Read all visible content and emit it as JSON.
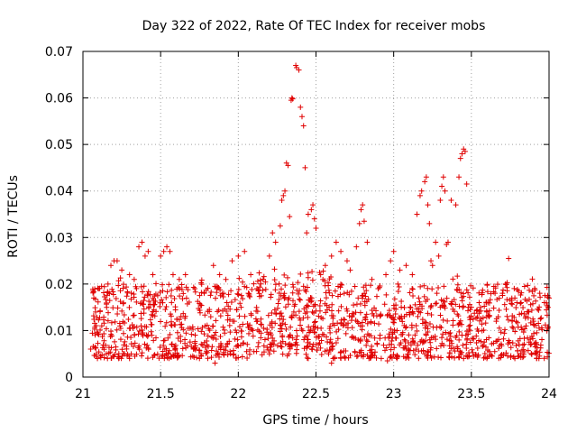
{
  "chart_data": {
    "type": "scatter",
    "title": "Day 322 of 2022, Rate Of TEC Index for receiver mobs",
    "xlabel": "GPS time / hours",
    "ylabel": "ROTI / TECUs",
    "xlim": [
      21,
      24
    ],
    "ylim": [
      0,
      0.07
    ],
    "grid": true,
    "marker": "+",
    "color": "#e00000",
    "x_ticks": [
      21,
      21.5,
      22,
      22.5,
      23,
      23.5,
      24
    ],
    "x_tick_labels": [
      "21",
      "21.5",
      "22",
      "22.5",
      "23",
      "23.5",
      "24"
    ],
    "y_ticks": [
      0,
      0.01,
      0.02,
      0.03,
      0.04,
      0.05,
      0.06,
      0.07
    ],
    "y_tick_labels": [
      "0",
      "0.01",
      "0.02",
      "0.03",
      "0.04",
      "0.05",
      "0.06",
      "0.07"
    ],
    "series": [
      {
        "name": "ROTI",
        "points": [
          [
            21.07,
            0.017
          ],
          [
            21.1,
            0.019
          ],
          [
            21.12,
            0.0195
          ],
          [
            21.18,
            0.024
          ],
          [
            21.2,
            0.025
          ],
          [
            21.22,
            0.025
          ],
          [
            21.25,
            0.023
          ],
          [
            21.3,
            0.022
          ],
          [
            21.33,
            0.021
          ],
          [
            21.36,
            0.028
          ],
          [
            21.38,
            0.029
          ],
          [
            21.4,
            0.026
          ],
          [
            21.42,
            0.027
          ],
          [
            21.45,
            0.022
          ],
          [
            21.5,
            0.026
          ],
          [
            21.52,
            0.027
          ],
          [
            21.54,
            0.028
          ],
          [
            21.56,
            0.027
          ],
          [
            21.58,
            0.022
          ],
          [
            21.62,
            0.021
          ],
          [
            21.66,
            0.022
          ],
          [
            21.72,
            0.019
          ],
          [
            21.78,
            0.018
          ],
          [
            21.84,
            0.024
          ],
          [
            21.88,
            0.022
          ],
          [
            21.92,
            0.021
          ],
          [
            21.96,
            0.025
          ],
          [
            22.0,
            0.026
          ],
          [
            22.04,
            0.027
          ],
          [
            22.08,
            0.022
          ],
          [
            22.12,
            0.019
          ],
          [
            22.16,
            0.021
          ],
          [
            22.2,
            0.026
          ],
          [
            22.22,
            0.031
          ],
          [
            22.24,
            0.029
          ],
          [
            22.27,
            0.0325
          ],
          [
            22.28,
            0.038
          ],
          [
            22.29,
            0.039
          ],
          [
            22.3,
            0.04
          ],
          [
            22.31,
            0.046
          ],
          [
            22.32,
            0.0455
          ],
          [
            22.33,
            0.0345
          ],
          [
            22.34,
            0.0595
          ],
          [
            22.345,
            0.06
          ],
          [
            22.35,
            0.0598
          ],
          [
            22.37,
            0.067
          ],
          [
            22.375,
            0.0665
          ],
          [
            22.39,
            0.066
          ],
          [
            22.4,
            0.058
          ],
          [
            22.41,
            0.056
          ],
          [
            22.42,
            0.054
          ],
          [
            22.43,
            0.045
          ],
          [
            22.44,
            0.031
          ],
          [
            22.45,
            0.035
          ],
          [
            22.47,
            0.036
          ],
          [
            22.48,
            0.037
          ],
          [
            22.49,
            0.034
          ],
          [
            22.5,
            0.032
          ],
          [
            22.53,
            0.022
          ],
          [
            22.56,
            0.024
          ],
          [
            22.6,
            0.026
          ],
          [
            22.63,
            0.029
          ],
          [
            22.66,
            0.027
          ],
          [
            22.7,
            0.025
          ],
          [
            22.72,
            0.023
          ],
          [
            22.76,
            0.028
          ],
          [
            22.78,
            0.033
          ],
          [
            22.79,
            0.036
          ],
          [
            22.8,
            0.037
          ],
          [
            22.81,
            0.0335
          ],
          [
            22.83,
            0.029
          ],
          [
            22.86,
            0.021
          ],
          [
            22.9,
            0.019
          ],
          [
            22.95,
            0.022
          ],
          [
            22.98,
            0.025
          ],
          [
            23.0,
            0.027
          ],
          [
            23.04,
            0.023
          ],
          [
            23.08,
            0.024
          ],
          [
            23.12,
            0.022
          ],
          [
            23.15,
            0.035
          ],
          [
            23.17,
            0.039
          ],
          [
            23.18,
            0.04
          ],
          [
            23.2,
            0.042
          ],
          [
            23.21,
            0.043
          ],
          [
            23.22,
            0.037
          ],
          [
            23.23,
            0.033
          ],
          [
            23.24,
            0.025
          ],
          [
            23.25,
            0.024
          ],
          [
            23.27,
            0.029
          ],
          [
            23.29,
            0.026
          ],
          [
            23.3,
            0.038
          ],
          [
            23.31,
            0.041
          ],
          [
            23.32,
            0.043
          ],
          [
            23.33,
            0.04
          ],
          [
            23.34,
            0.0285
          ],
          [
            23.35,
            0.029
          ],
          [
            23.37,
            0.038
          ],
          [
            23.4,
            0.037
          ],
          [
            23.42,
            0.043
          ],
          [
            23.43,
            0.047
          ],
          [
            23.44,
            0.048
          ],
          [
            23.45,
            0.049
          ],
          [
            23.46,
            0.0485
          ],
          [
            23.47,
            0.0415
          ],
          [
            23.5,
            0.015
          ],
          [
            23.55,
            0.016
          ],
          [
            23.6,
            0.014
          ],
          [
            23.66,
            0.012
          ],
          [
            23.7,
            0.018
          ],
          [
            23.72,
            0.02
          ],
          [
            23.74,
            0.0255
          ],
          [
            23.78,
            0.017
          ],
          [
            23.82,
            0.016
          ],
          [
            23.86,
            0.014
          ],
          [
            23.9,
            0.012
          ],
          [
            23.94,
            0.018
          ],
          [
            23.97,
            0.016
          ],
          [
            24.0,
            0.017
          ],
          [
            21.05,
            0.006
          ],
          [
            21.15,
            0.005
          ],
          [
            21.3,
            0.004
          ],
          [
            21.55,
            0.005
          ],
          [
            21.75,
            0.004
          ],
          [
            21.85,
            0.003
          ],
          [
            21.95,
            0.005
          ],
          [
            22.2,
            0.005
          ],
          [
            22.45,
            0.004
          ],
          [
            22.6,
            0.003
          ],
          [
            22.62,
            0.004
          ],
          [
            22.92,
            0.004
          ],
          [
            22.96,
            0.0035
          ],
          [
            23.2,
            0.005
          ],
          [
            23.45,
            0.004
          ],
          [
            23.6,
            0.004
          ],
          [
            23.78,
            0.004
          ],
          [
            23.92,
            0.004
          ]
        ]
      }
    ]
  }
}
